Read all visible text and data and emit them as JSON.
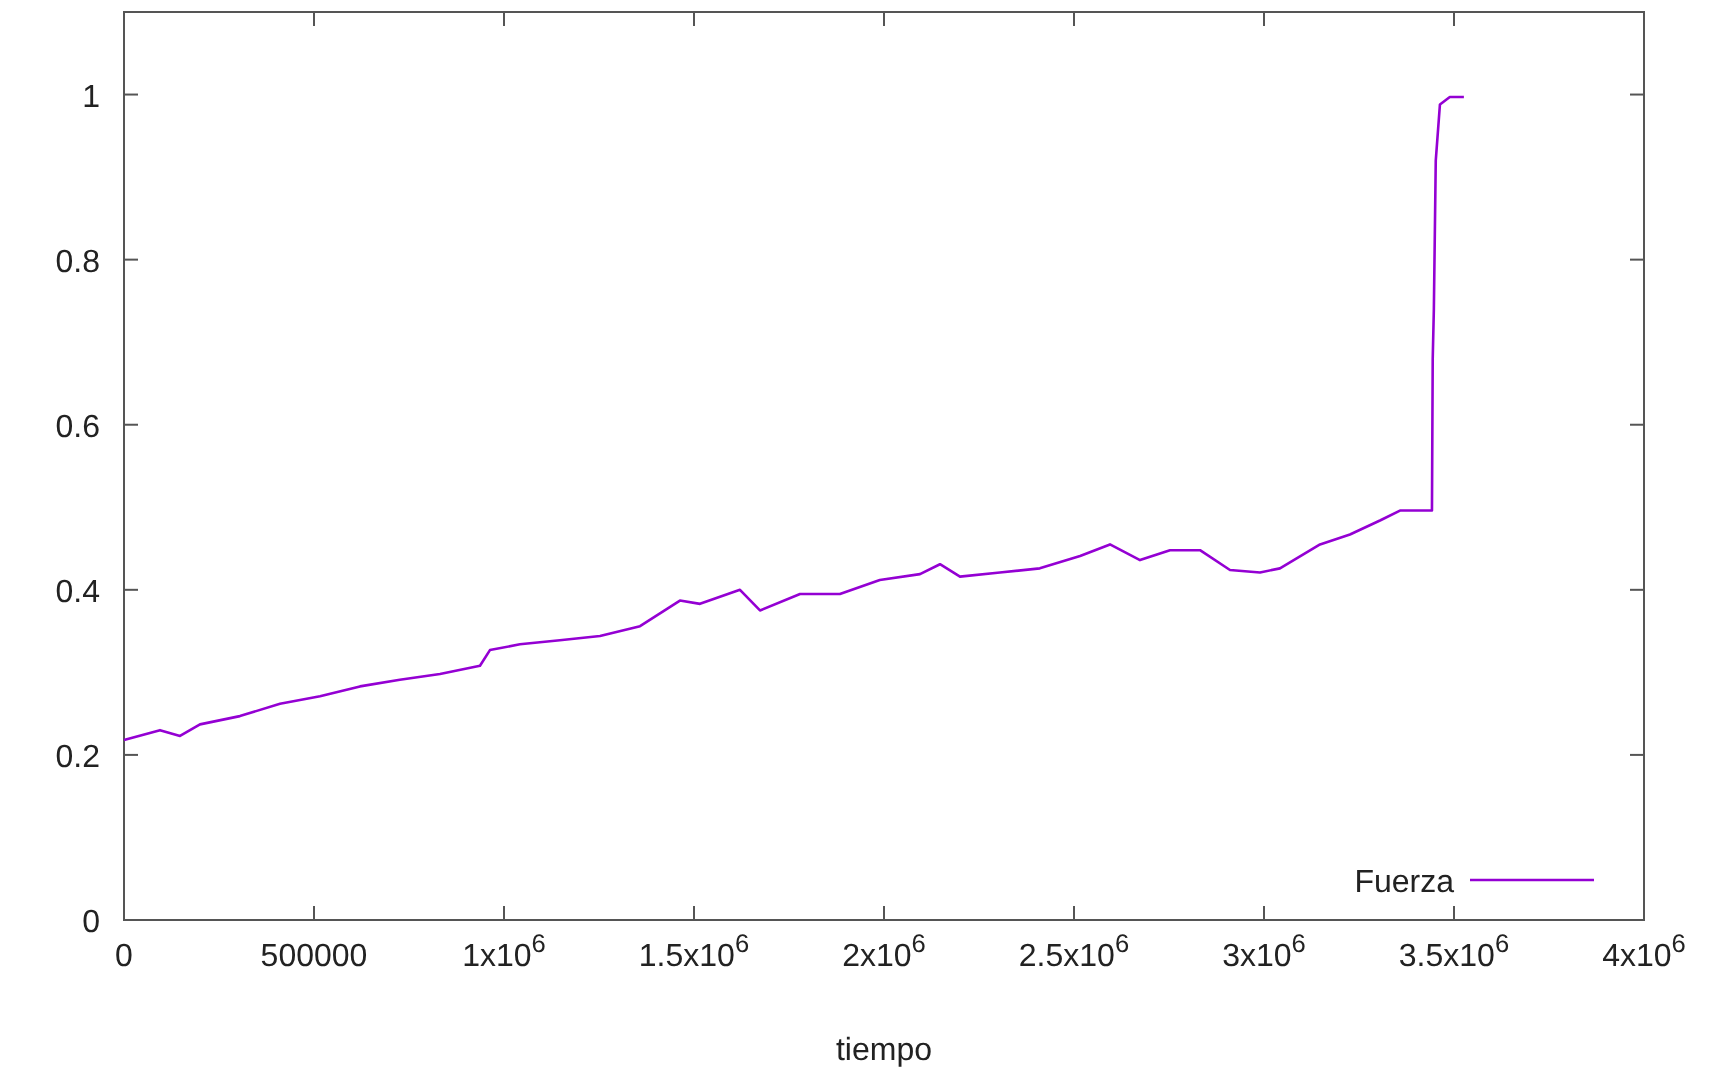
{
  "chart_data": {
    "type": "line",
    "xlabel": "tiempo",
    "x": [
      0,
      94700,
      147400,
      200000,
      305000,
      410500,
      515800,
      621000,
      726000,
      831500,
      936800,
      963000,
      1042000,
      1147000,
      1252600,
      1358000,
      1463000,
      1515800,
      1621000,
      1673600,
      1779000,
      1884000,
      1989000,
      2094700,
      2147300,
      2200000,
      2305000,
      2410000,
      2516000,
      2594700,
      2673700,
      2752600,
      2831600,
      2910500,
      2989500,
      3042000,
      3147400,
      3226200,
      3305200,
      3357800,
      3442000,
      3444000,
      3447000,
      3452000,
      3463000,
      3489000,
      3526000
    ],
    "series": [
      {
        "name": "Fuerza",
        "color": "#9400d3",
        "values": [
          0.218,
          0.23,
          0.223,
          0.237,
          0.247,
          0.262,
          0.271,
          0.283,
          0.291,
          0.298,
          0.308,
          0.327,
          0.334,
          0.339,
          0.344,
          0.356,
          0.387,
          0.383,
          0.4,
          0.375,
          0.395,
          0.395,
          0.412,
          0.419,
          0.431,
          0.416,
          0.421,
          0.426,
          0.441,
          0.455,
          0.436,
          0.448,
          0.448,
          0.424,
          0.421,
          0.426,
          0.455,
          0.467,
          0.484,
          0.496,
          0.496,
          0.68,
          0.74,
          0.92,
          0.988,
          0.997,
          0.997
        ]
      }
    ],
    "xlim": [
      0,
      4000000
    ],
    "ylim": [
      0,
      1.1
    ],
    "xticks": [
      0,
      500000,
      {
        "value": 1000000,
        "label": "1x10$^{6}$"
      },
      {
        "value": 1500000,
        "label": "1.5x10$^{6}$"
      },
      {
        "value": 2000000,
        "label": "2x10$^{6}$"
      },
      {
        "value": 2500000,
        "label": "2.5x10$^{6}$"
      },
      {
        "value": 3000000,
        "label": "3x10$^{6}$"
      },
      {
        "value": 3500000,
        "label": "3.5x10$^{6}$"
      },
      {
        "value": 4000000,
        "label": "4x10$^{6}$"
      }
    ],
    "yticks": [
      0,
      0.2,
      0.4,
      0.6,
      0.8,
      1
    ],
    "legend": "bottom right",
    "grid": false,
    "marker": "none",
    "line_style": "solid"
  }
}
